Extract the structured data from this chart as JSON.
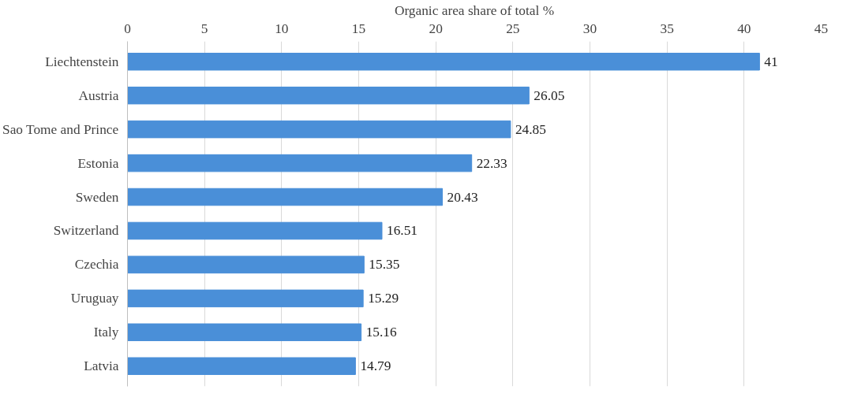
{
  "chart_data": {
    "type": "bar",
    "orientation": "horizontal",
    "xlabel": "Organic area share of total %",
    "categories": [
      "Liechtenstein",
      "Austria",
      "Sao Tome and Prince",
      "Estonia",
      "Sweden",
      "Switzerland",
      "Czechia",
      "Uruguay",
      "Italy",
      "Latvia"
    ],
    "values": [
      41,
      26.05,
      24.85,
      22.33,
      20.43,
      16.51,
      15.35,
      15.29,
      15.16,
      14.79
    ],
    "color": "#4a8fd8",
    "xlim": [
      0,
      45
    ],
    "xticks": [
      0,
      5,
      10,
      15,
      20,
      25,
      30,
      35,
      40,
      45
    ],
    "grid": "x",
    "data_labels": true
  }
}
